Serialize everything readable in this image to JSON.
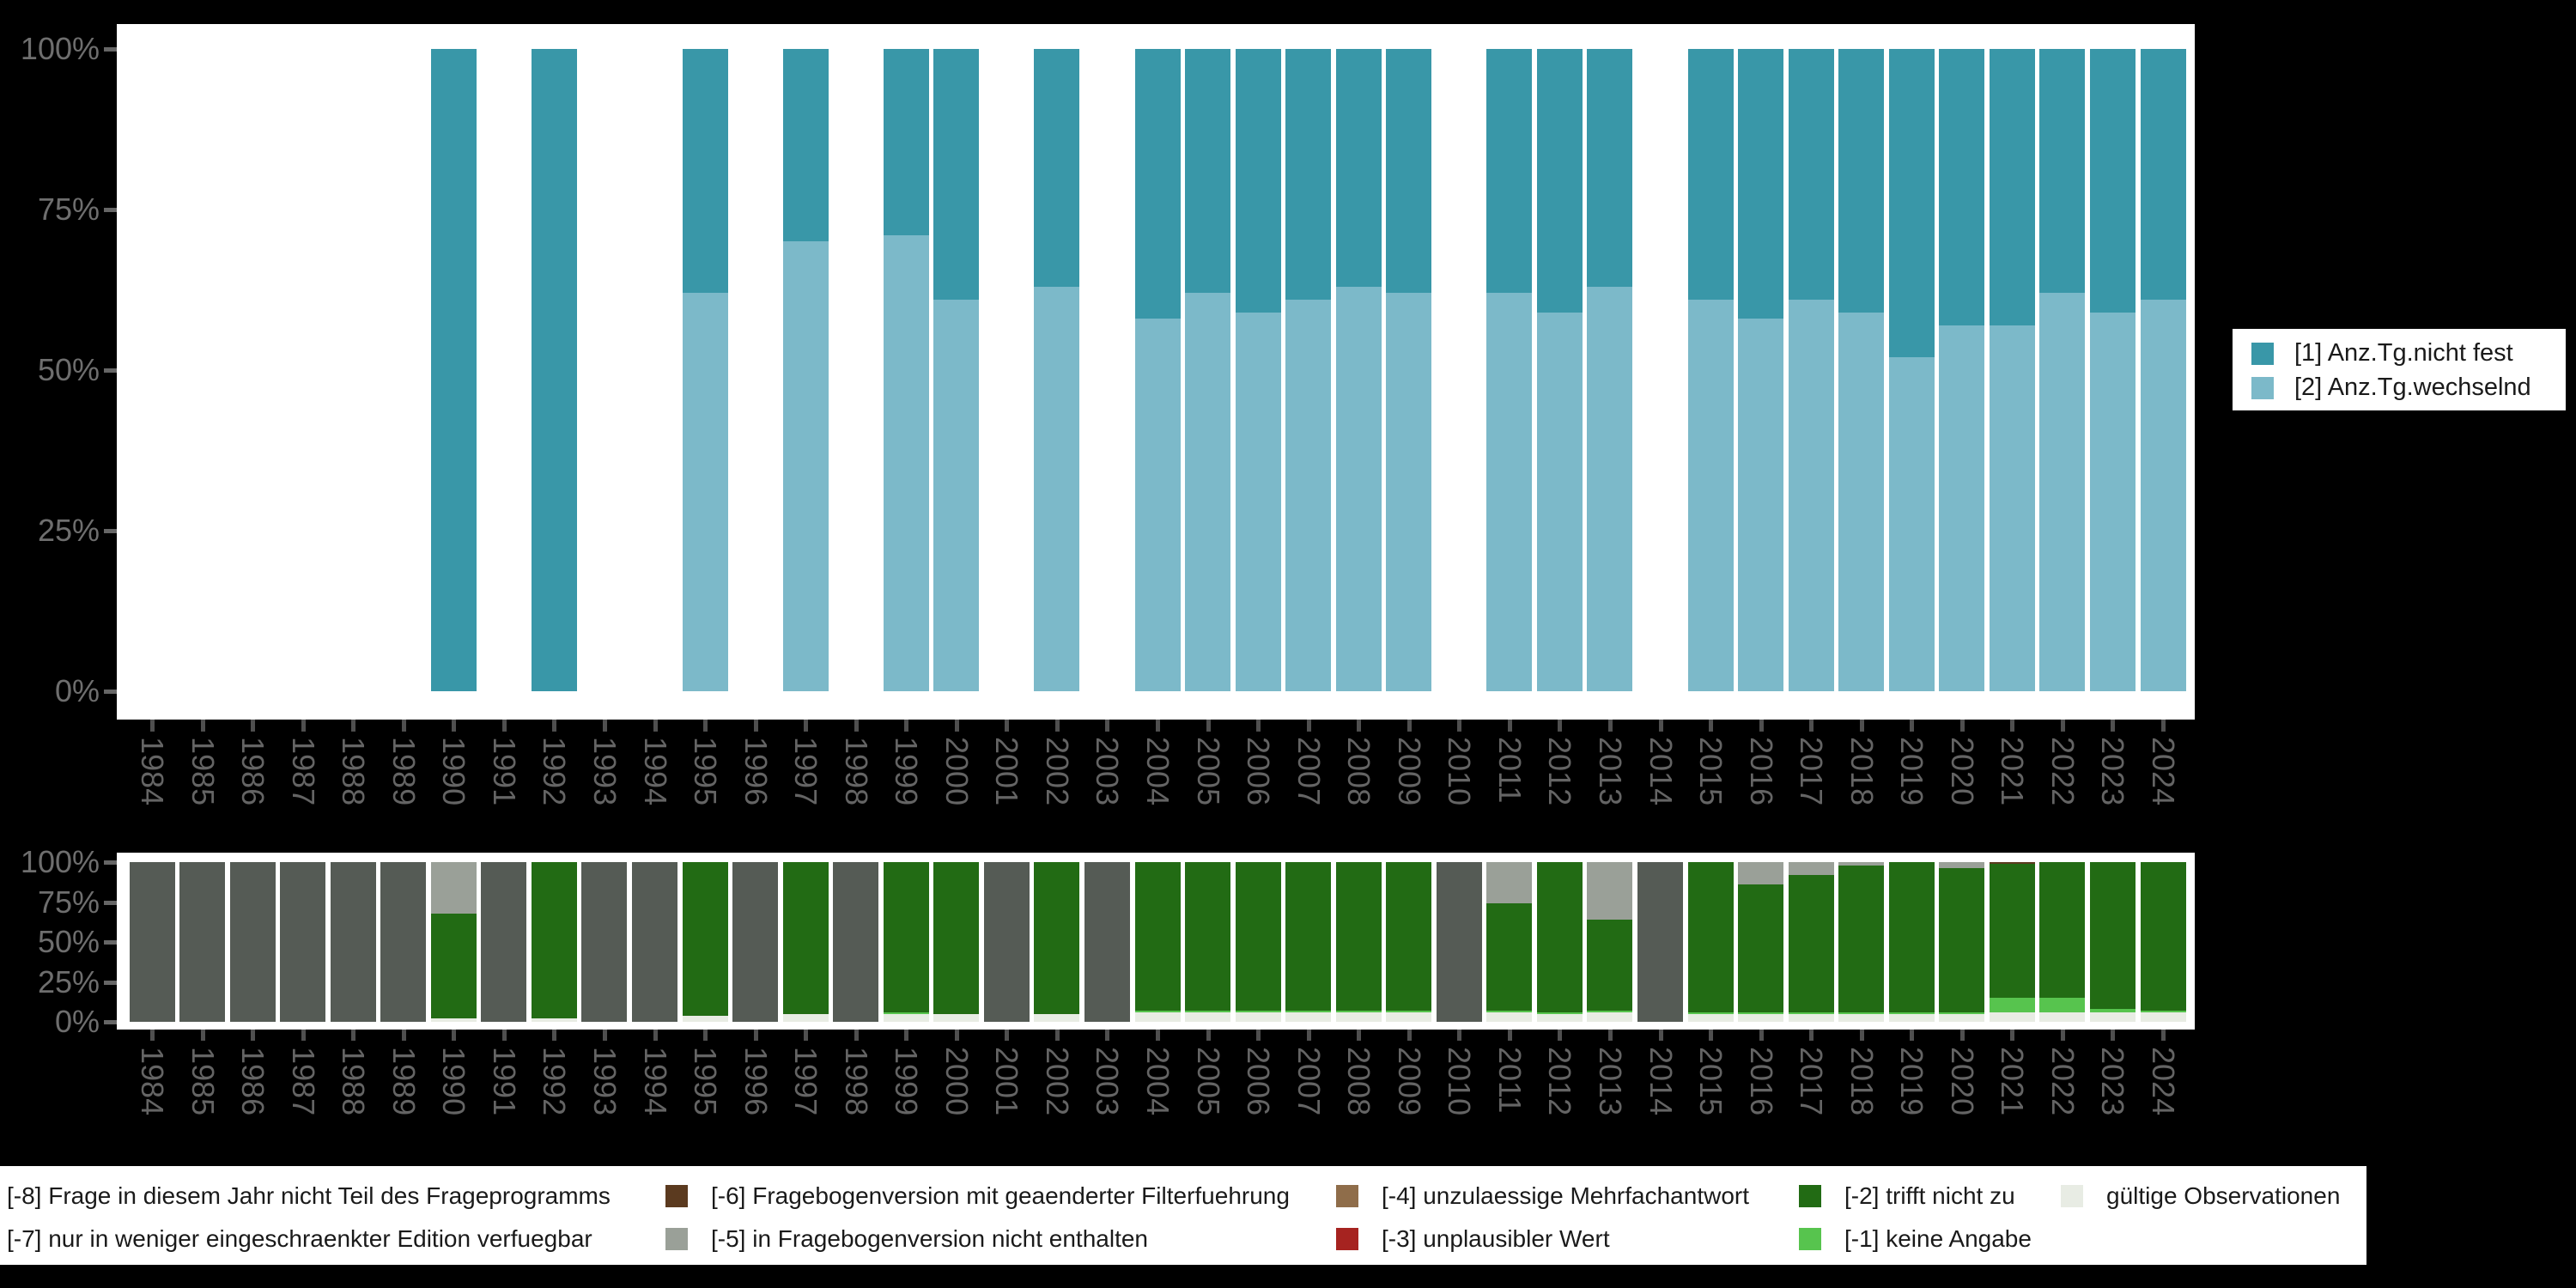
{
  "colors": {
    "background": "#000000",
    "plot_background": "#ffffff",
    "axis_text": "#6E6E6E",
    "tick": "#555555",
    "legend_text": "#1a1a1a",
    "anz_tg_nicht_fest": "#3997A8",
    "anz_tg_wechselnd": "#7CB9C9",
    "gueltige_observationen": "#E8ECE4",
    "keine_angabe": "#57C44E",
    "trifft_nicht_zu": "#226B14",
    "in_fragebogenversion_nicht_enthalten": "#9AA098",
    "fragebogenversion_geaenderte_filterfuehrung": "#5B3A1F",
    "nicht_teil_des_frageprogramms": "#555B55"
  },
  "chart_data": [
    {
      "id": "antwort",
      "type": "bar",
      "stacked": true,
      "unit": "percent",
      "title": "",
      "xlabel": "",
      "ylabel": "",
      "ylim": [
        0,
        100
      ],
      "grid": false,
      "legend_position": "right",
      "x": [
        1984,
        1985,
        1986,
        1987,
        1988,
        1989,
        1990,
        1991,
        1992,
        1993,
        1994,
        1995,
        1996,
        1997,
        1998,
        1999,
        2000,
        2001,
        2002,
        2003,
        2004,
        2005,
        2006,
        2007,
        2008,
        2009,
        2010,
        2011,
        2012,
        2013,
        2014,
        2015,
        2016,
        2017,
        2018,
        2019,
        2020,
        2021,
        2022,
        2023,
        2024
      ],
      "ytick_labels": [
        "0%",
        "25%",
        "50%",
        "75%",
        "100%"
      ],
      "series": [
        {
          "name": "[2] Anz.Tg.wechselnd",
          "color": "#7CB9C9",
          "values": [
            null,
            null,
            null,
            null,
            null,
            null,
            0,
            null,
            0,
            null,
            null,
            62,
            null,
            70,
            null,
            71,
            61,
            null,
            63,
            null,
            58,
            62,
            59,
            61,
            63,
            62,
            null,
            62,
            59,
            63,
            null,
            61,
            58,
            61,
            59,
            52,
            57,
            57,
            62,
            59,
            61
          ]
        },
        {
          "name": "[1] Anz.Tg.nicht fest",
          "color": "#3997A8",
          "values": [
            null,
            null,
            null,
            null,
            null,
            null,
            100,
            null,
            100,
            null,
            null,
            38,
            null,
            30,
            null,
            29,
            39,
            null,
            37,
            null,
            42,
            38,
            41,
            39,
            37,
            38,
            null,
            38,
            41,
            37,
            null,
            39,
            42,
            39,
            41,
            48,
            43,
            43,
            38,
            41,
            39
          ]
        }
      ]
    },
    {
      "id": "missings",
      "type": "bar",
      "stacked": true,
      "unit": "percent",
      "title": "",
      "xlabel": "",
      "ylabel": "",
      "ylim": [
        0,
        100
      ],
      "grid": false,
      "legend_position": "bottom",
      "x": [
        1984,
        1985,
        1986,
        1987,
        1988,
        1989,
        1990,
        1991,
        1992,
        1993,
        1994,
        1995,
        1996,
        1997,
        1998,
        1999,
        2000,
        2001,
        2002,
        2003,
        2004,
        2005,
        2006,
        2007,
        2008,
        2009,
        2010,
        2011,
        2012,
        2013,
        2014,
        2015,
        2016,
        2017,
        2018,
        2019,
        2020,
        2021,
        2022,
        2023,
        2024
      ],
      "ytick_labels": [
        "0%",
        "25%",
        "50%",
        "75%",
        "100%"
      ],
      "series": [
        {
          "name": "gültige Observationen",
          "color": "#E8ECE4",
          "values": [
            0,
            0,
            0,
            0,
            0,
            0,
            2,
            0,
            2,
            0,
            0,
            4,
            0,
            5,
            0,
            5,
            5,
            0,
            5,
            0,
            6,
            6,
            6,
            6,
            6,
            6,
            0,
            6,
            5,
            6,
            0,
            5,
            5,
            5,
            5,
            5,
            5,
            6,
            6,
            6,
            6
          ]
        },
        {
          "name": "[-1] keine Angabe",
          "color": "#57C44E",
          "values": [
            0,
            0,
            0,
            0,
            0,
            0,
            0,
            0,
            0,
            0,
            0,
            0,
            0,
            0,
            0,
            1,
            0,
            0,
            0,
            0,
            1,
            1,
            1,
            1,
            1,
            1,
            0,
            1,
            1,
            1,
            0,
            1,
            1,
            1,
            1,
            1,
            1,
            9,
            9,
            2,
            1
          ]
        },
        {
          "name": "[-2] trifft nicht zu",
          "color": "#226B14",
          "values": [
            0,
            0,
            0,
            0,
            0,
            0,
            66,
            0,
            98,
            0,
            0,
            96,
            0,
            95,
            0,
            94,
            95,
            0,
            95,
            0,
            93,
            93,
            93,
            93,
            93,
            93,
            0,
            67,
            94,
            57,
            0,
            94,
            80,
            86,
            92,
            94,
            90,
            84,
            85,
            92,
            93
          ]
        },
        {
          "name": "[-5] in Fragebogenversion nicht enthalten",
          "color": "#9AA098",
          "values": [
            0,
            0,
            0,
            0,
            0,
            0,
            32,
            0,
            0,
            0,
            0,
            0,
            0,
            0,
            0,
            0,
            0,
            0,
            0,
            0,
            0,
            0,
            0,
            0,
            0,
            0,
            0,
            26,
            0,
            36,
            0,
            0,
            14,
            8,
            2,
            0,
            4,
            0,
            0,
            0,
            0
          ]
        },
        {
          "name": "[-6] Fragebogenversion mit geaenderter Filterfuehrung",
          "color": "#5B3A1F",
          "values": [
            0,
            0,
            0,
            0,
            0,
            0,
            0,
            0,
            0,
            0,
            0,
            0,
            0,
            0,
            0,
            0,
            0,
            0,
            0,
            0,
            0,
            0,
            0,
            0,
            0,
            0,
            0,
            0,
            0,
            0,
            0,
            0,
            0,
            0,
            0,
            0,
            0,
            1,
            0,
            0,
            0
          ]
        },
        {
          "name": "[-8] Frage in diesem Jahr nicht Teil des Frageprogramms",
          "color": "#555B55",
          "values": [
            100,
            100,
            100,
            100,
            100,
            100,
            0,
            100,
            0,
            100,
            100,
            0,
            100,
            0,
            100,
            0,
            0,
            100,
            0,
            100,
            0,
            0,
            0,
            0,
            0,
            0,
            100,
            0,
            0,
            0,
            100,
            0,
            0,
            0,
            0,
            0,
            0,
            0,
            0,
            0,
            0
          ]
        }
      ]
    }
  ],
  "legend_top": {
    "items": [
      {
        "label": "[1] Anz.Tg.nicht fest",
        "color": "#3997A8"
      },
      {
        "label": "[2] Anz.Tg.wechselnd",
        "color": "#7CB9C9"
      }
    ]
  },
  "legend_bottom": {
    "rows": [
      [
        {
          "label": "[-8] Frage in diesem Jahr nicht Teil des Frageprogramms",
          "key": null
        },
        {
          "label": "[-6] Fragebogenversion mit geaenderter Filterfuehrung",
          "key": "#5B3A1F"
        },
        {
          "label": "[-4] unzulaessige Mehrfachantwort",
          "key": "#8F6D4A"
        },
        {
          "label": "[-2] trifft nicht zu",
          "key": "#226B14"
        },
        {
          "label": "gültige Observationen",
          "key": "#E8ECE4"
        }
      ],
      [
        {
          "label": "[-7] nur in weniger eingeschraenkter Edition verfuegbar",
          "key": null
        },
        {
          "label": "[-5] in Fragebogenversion nicht enthalten",
          "key": "#9AA098"
        },
        {
          "label": "[-3] unplausibler Wert",
          "key": "#A62320"
        },
        {
          "label": "[-1] keine Angabe",
          "key": "#57C44E"
        }
      ]
    ]
  }
}
